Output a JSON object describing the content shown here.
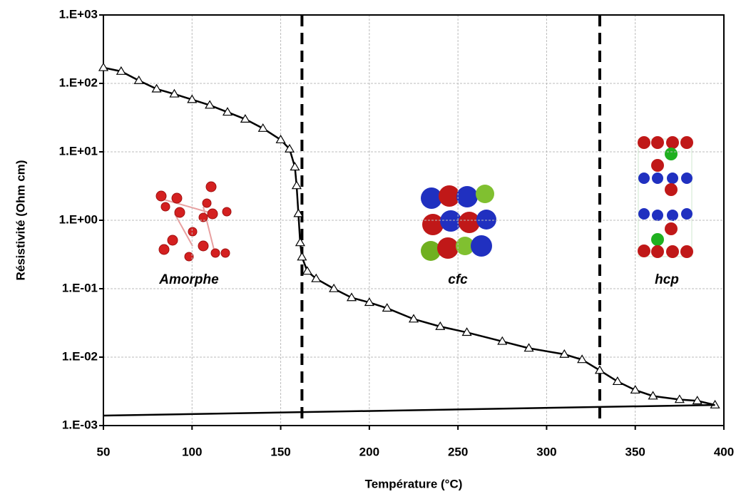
{
  "chart_data": {
    "type": "line",
    "x_label": "Température (°C)",
    "y_label": "Résistivité (Ohm cm)",
    "log_y": true,
    "grid": true,
    "xlim": [
      50,
      400
    ],
    "xticks": [
      50,
      100,
      150,
      200,
      250,
      300,
      350,
      400
    ],
    "ylim": [
      0.001,
      1000
    ],
    "yticks": [
      {
        "value": 0.001,
        "label": "1.E-03"
      },
      {
        "value": 0.01,
        "label": "1.E-02"
      },
      {
        "value": 0.1,
        "label": "1.E-01"
      },
      {
        "value": 1,
        "label": "1.E+00"
      },
      {
        "value": 10,
        "label": "1.E+01"
      },
      {
        "value": 100,
        "label": "1.E+02"
      },
      {
        "value": 1000,
        "label": "1.E+03"
      }
    ],
    "series": [
      {
        "color": "#000000",
        "marker": "triangle",
        "x": [
          50,
          60,
          70,
          80,
          90,
          100,
          110,
          120,
          130,
          140,
          150,
          155,
          158,
          159,
          160,
          161,
          162,
          165,
          170,
          180,
          190,
          200,
          210,
          225,
          240,
          255,
          275,
          290,
          310,
          320,
          330,
          340,
          350,
          360,
          375,
          385,
          395
        ],
        "values": [
          170,
          150,
          110,
          83,
          70,
          58,
          48,
          38,
          30,
          22,
          15,
          11,
          6,
          3.2,
          1.25,
          0.47,
          0.29,
          0.18,
          0.14,
          0.1,
          0.074,
          0.063,
          0.052,
          0.036,
          0.028,
          0.023,
          0.017,
          0.0135,
          0.011,
          0.0092,
          0.0064,
          0.0044,
          0.0033,
          0.0027,
          0.0024,
          0.0023,
          0.002
        ]
      },
      {
        "color": "#000000",
        "x": [
          50,
          395
        ],
        "values": [
          0.0014,
          0.002
        ]
      }
    ],
    "vlines": [
      162,
      330
    ],
    "annotations": [
      "Amorphe",
      "cfc",
      "hcp"
    ]
  }
}
